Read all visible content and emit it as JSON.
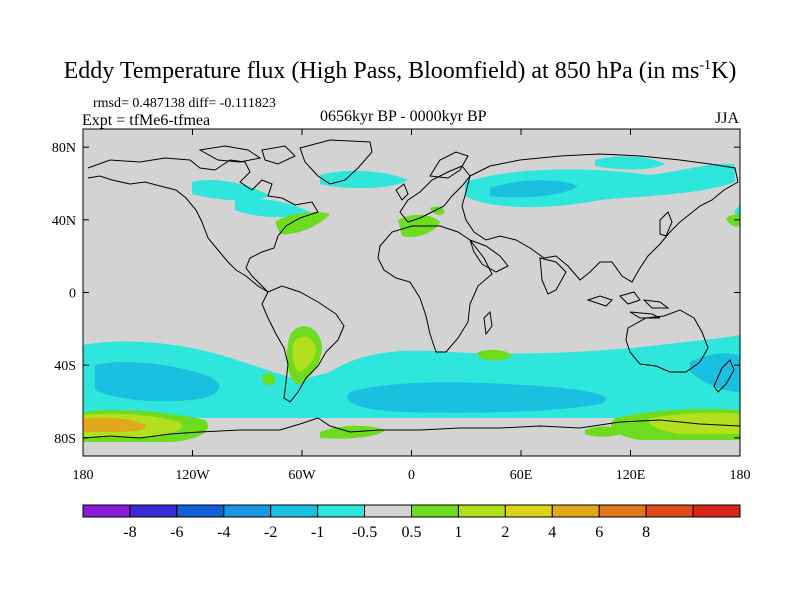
{
  "figure": {
    "title_main": "Eddy Temperature flux (High Pass, Bloomfield) at 850 hPa (in ms",
    "title_sup": "-1",
    "title_end": "K)",
    "stats": "rmsd= 0.487138 diff= -0.111823",
    "experiment": "Expt = tfMe6-tfmea",
    "period": "0656kyr BP - 0000kyr BP",
    "season": "JJA"
  },
  "map": {
    "lon_ticks": [
      "180",
      "120W",
      "60W",
      "0",
      "60E",
      "120E",
      "180"
    ],
    "lat_ticks": [
      "80N",
      "40N",
      "0",
      "40S",
      "80S"
    ],
    "land_color": "#000000",
    "background_color": "#d3d3d3"
  },
  "colorbar": {
    "colors": [
      "#8c1cd9",
      "#3a2ad6",
      "#1160d8",
      "#1b96e2",
      "#19c0e0",
      "#2ee6dc",
      "#d3d3d3",
      "#6edc1e",
      "#b3e01c",
      "#dcd21a",
      "#e0a81a",
      "#e2761c",
      "#e04a1a",
      "#d6261a"
    ],
    "labels": [
      "-8",
      "-6",
      "-4",
      "-2",
      "-1",
      "-0.5",
      "0.5",
      "1",
      "2",
      "4",
      "6",
      "8"
    ]
  }
}
